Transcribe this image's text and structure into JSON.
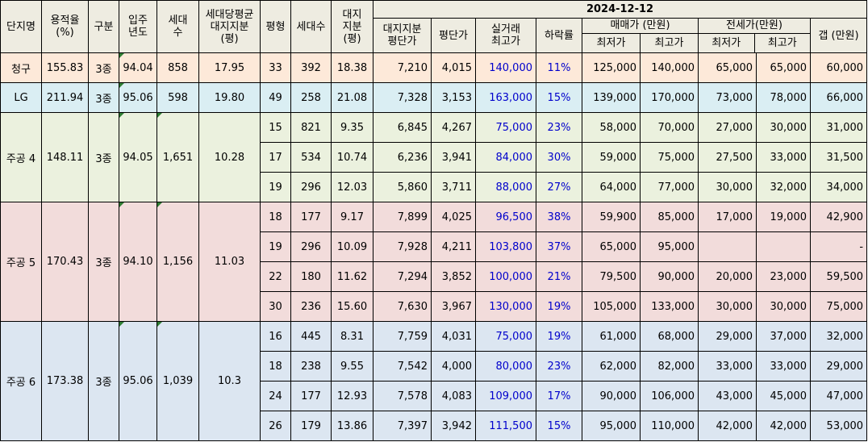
{
  "headers": {
    "complex": "단지명",
    "far": [
      "용적율",
      "(%)"
    ],
    "zone": "구분",
    "year": [
      "입주",
      "년도"
    ],
    "households": [
      "세대",
      "수"
    ],
    "avg_land": [
      "세대당평균",
      "대지지분",
      "(평)"
    ],
    "pyeong": "평형",
    "unit_count": "세대수",
    "land_share": [
      "대지",
      "지분",
      "(평)"
    ],
    "date": "2024-12-12",
    "land_price": [
      "대지지분",
      "평단가"
    ],
    "pyeong_price": "평단가",
    "real_max": [
      "실거래",
      "최고가"
    ],
    "drop": "하락률",
    "sale": "매매가 (만원)",
    "jeonse": "전세가(만원)",
    "min": "최저가",
    "max": "최고가",
    "gap": "갭 (만원)"
  },
  "colors": {
    "header_bg": "#eeece1",
    "cheonggu": "#fde9d9",
    "lg": "#daeef3",
    "jugong4": "#ebf1de",
    "jugong5": "#f2dcdb",
    "jugong6": "#dce6f1",
    "blue_text": "#0000cc",
    "triangle": "#2e7d32"
  },
  "complexes": [
    {
      "name": "청구",
      "far": "155.83",
      "zone": "3종",
      "year": "94.04",
      "households": "858",
      "avg_land": "17.95",
      "color_key": "cheonggu",
      "rows": [
        {
          "pyeong": "33",
          "units": "392",
          "land": "18.38",
          "land_price": "7,210",
          "pyeong_price": "4,015",
          "real_max": "140,000",
          "drop": "11%",
          "sale_min": "125,000",
          "sale_max": "140,000",
          "jeonse_min": "65,000",
          "jeonse_max": "65,000",
          "gap": "60,000"
        }
      ]
    },
    {
      "name": "LG",
      "far": "211.94",
      "zone": "3종",
      "year": "95.06",
      "households": "598",
      "avg_land": "19.80",
      "color_key": "lg",
      "rows": [
        {
          "pyeong": "49",
          "units": "258",
          "land": "21.08",
          "land_price": "7,328",
          "pyeong_price": "3,153",
          "real_max": "163,000",
          "drop": "15%",
          "sale_min": "139,000",
          "sale_max": "170,000",
          "jeonse_min": "73,000",
          "jeonse_max": "78,000",
          "gap": "66,000"
        }
      ]
    },
    {
      "name": "주공 4",
      "far": "148.11",
      "zone": "3종",
      "year": "94.05",
      "households": "1,651",
      "avg_land": "10.28",
      "color_key": "jugong4",
      "rows": [
        {
          "pyeong": "15",
          "units": "821",
          "land": "9.35",
          "land_price": "6,845",
          "pyeong_price": "4,267",
          "real_max": "75,000",
          "drop": "23%",
          "sale_min": "58,000",
          "sale_max": "70,000",
          "jeonse_min": "27,000",
          "jeonse_max": "30,000",
          "gap": "31,000"
        },
        {
          "pyeong": "17",
          "units": "534",
          "land": "10.74",
          "land_price": "6,236",
          "pyeong_price": "3,941",
          "real_max": "84,000",
          "drop": "30%",
          "sale_min": "59,000",
          "sale_max": "75,000",
          "jeonse_min": "27,500",
          "jeonse_max": "33,000",
          "gap": "31,500"
        },
        {
          "pyeong": "19",
          "units": "296",
          "land": "12.03",
          "land_price": "5,860",
          "pyeong_price": "3,711",
          "real_max": "88,000",
          "drop": "27%",
          "sale_min": "64,000",
          "sale_max": "77,000",
          "jeonse_min": "30,000",
          "jeonse_max": "32,000",
          "gap": "34,000"
        }
      ]
    },
    {
      "name": "주공 5",
      "far": "170.43",
      "zone": "3종",
      "year": "94.10",
      "households": "1,156",
      "avg_land": "11.03",
      "color_key": "jugong5",
      "rows": [
        {
          "pyeong": "18",
          "units": "177",
          "land": "9.17",
          "land_price": "7,899",
          "pyeong_price": "4,025",
          "real_max": "96,500",
          "drop": "38%",
          "sale_min": "59,900",
          "sale_max": "85,000",
          "jeonse_min": "17,000",
          "jeonse_max": "19,000",
          "gap": "42,900"
        },
        {
          "pyeong": "19",
          "units": "296",
          "land": "10.09",
          "land_price": "7,928",
          "pyeong_price": "4,211",
          "real_max": "103,800",
          "drop": "37%",
          "sale_min": "65,000",
          "sale_max": "95,000",
          "jeonse_min": "",
          "jeonse_max": "",
          "gap": "-"
        },
        {
          "pyeong": "22",
          "units": "180",
          "land": "11.62",
          "land_price": "7,294",
          "pyeong_price": "3,852",
          "real_max": "100,000",
          "drop": "21%",
          "sale_min": "79,500",
          "sale_max": "90,000",
          "jeonse_min": "20,000",
          "jeonse_max": "23,000",
          "gap": "59,500"
        },
        {
          "pyeong": "30",
          "units": "236",
          "land": "15.60",
          "land_price": "7,630",
          "pyeong_price": "3,967",
          "real_max": "130,000",
          "drop": "19%",
          "sale_min": "105,000",
          "sale_max": "133,000",
          "jeonse_min": "30,000",
          "jeonse_max": "30,000",
          "gap": "75,000"
        }
      ]
    },
    {
      "name": "주공 6",
      "far": "173.38",
      "zone": "3종",
      "year": "95.06",
      "households": "1,039",
      "avg_land": "10.3",
      "color_key": "jugong6",
      "rows": [
        {
          "pyeong": "16",
          "units": "445",
          "land": "8.31",
          "land_price": "7,759",
          "pyeong_price": "4,031",
          "real_max": "75,000",
          "drop": "19%",
          "sale_min": "61,000",
          "sale_max": "68,000",
          "jeonse_min": "29,000",
          "jeonse_max": "37,000",
          "gap": "32,000"
        },
        {
          "pyeong": "18",
          "units": "238",
          "land": "9.55",
          "land_price": "7,542",
          "pyeong_price": "4,000",
          "real_max": "80,000",
          "drop": "23%",
          "sale_min": "62,000",
          "sale_max": "82,000",
          "jeonse_min": "33,000",
          "jeonse_max": "33,000",
          "gap": "29,000"
        },
        {
          "pyeong": "24",
          "units": "177",
          "land": "12.93",
          "land_price": "7,578",
          "pyeong_price": "4,083",
          "real_max": "109,000",
          "drop": "17%",
          "sale_min": "90,000",
          "sale_max": "106,000",
          "jeonse_min": "43,000",
          "jeonse_max": "45,000",
          "gap": "47,000"
        },
        {
          "pyeong": "26",
          "units": "179",
          "land": "13.86",
          "land_price": "7,397",
          "pyeong_price": "3,942",
          "real_max": "111,500",
          "drop": "15%",
          "sale_min": "95,000",
          "sale_max": "110,000",
          "jeonse_min": "42,000",
          "jeonse_max": "42,000",
          "gap": "53,000"
        }
      ]
    }
  ]
}
